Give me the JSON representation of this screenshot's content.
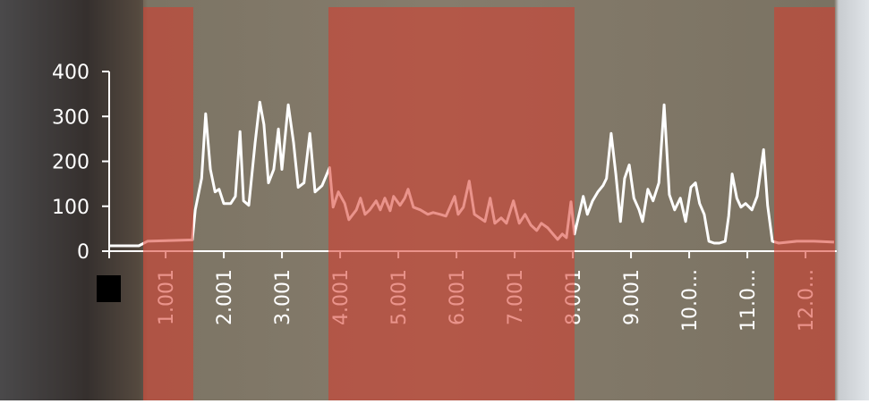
{
  "chart_data": {
    "type": "line",
    "x": [
      0.03,
      0.54,
      0.69,
      1.46,
      1.51,
      1.62,
      1.69,
      1.77,
      1.85,
      1.92,
      2.0,
      2.12,
      2.2,
      2.28,
      2.34,
      2.43,
      2.54,
      2.62,
      2.69,
      2.77,
      2.86,
      2.94,
      3.0,
      3.11,
      3.2,
      3.28,
      3.38,
      3.48,
      3.57,
      3.69,
      3.82,
      3.88,
      3.97,
      4.08,
      4.15,
      4.28,
      4.35,
      4.43,
      4.51,
      4.62,
      4.69,
      4.77,
      4.86,
      4.92,
      5.03,
      5.11,
      5.17,
      5.26,
      5.38,
      5.51,
      5.6,
      5.72,
      5.82,
      5.89,
      5.97,
      6.03,
      6.12,
      6.22,
      6.31,
      6.4,
      6.49,
      6.58,
      6.66,
      6.77,
      6.86,
      6.98,
      7.08,
      7.18,
      7.28,
      7.38,
      7.46,
      7.57,
      7.66,
      7.74,
      7.82,
      7.89,
      7.97,
      8.03,
      8.09,
      8.18,
      8.25,
      8.34,
      8.43,
      8.52,
      8.58,
      8.66,
      8.74,
      8.82,
      8.89,
      8.97,
      9.05,
      9.14,
      9.2,
      9.29,
      9.38,
      9.48,
      9.57,
      9.66,
      9.75,
      9.85,
      9.94,
      10.03,
      10.11,
      10.18,
      10.26,
      10.34,
      10.43,
      10.52,
      10.62,
      10.68,
      10.74,
      10.82,
      10.89,
      10.97,
      11.08,
      11.17,
      11.28,
      11.35,
      11.43,
      11.54,
      11.85,
      12.15,
      12.49
    ],
    "series": [
      {
        "color": "#ffffff",
        "values": [
          12,
          12,
          22,
          25,
          92,
          162,
          306,
          182,
          132,
          138,
          106,
          106,
          122,
          266,
          112,
          102,
          242,
          332,
          282,
          152,
          182,
          272,
          182,
          326,
          242,
          142,
          152,
          262,
          132,
          146,
          186,
          98,
          132,
          106,
          70,
          92,
          118,
          82,
          92,
          112,
          92,
          118,
          90,
          122,
          102,
          118,
          138,
          98,
          92,
          82,
          86,
          82,
          78,
          98,
          122,
          82,
          98,
          156,
          82,
          74,
          66,
          118,
          62,
          74,
          62,
          112,
          62,
          82,
          58,
          46,
          62,
          52,
          38,
          26,
          38,
          30,
          110,
          38,
          72,
          122,
          82,
          112,
          132,
          146,
          162,
          262,
          172,
          66,
          162,
          192,
          118,
          92,
          66,
          138,
          112,
          152,
          326,
          126,
          92,
          118,
          66,
          142,
          152,
          106,
          82,
          22,
          18,
          18,
          22,
          78,
          172,
          118,
          98,
          106,
          92,
          122,
          226,
          102,
          22,
          18,
          22,
          22,
          20
        ]
      }
    ],
    "xlim": [
      0,
      12.5
    ],
    "ylim": [
      0,
      400
    ],
    "xticks": [
      1.001,
      2.001,
      3.001,
      4.001,
      5.001,
      6.001,
      7.001,
      8.001,
      9.001,
      {
        "value": 10.001,
        "label": "10.0..."
      },
      {
        "value": 11.001,
        "label": "11.0..."
      },
      {
        "value": 12.001,
        "label": "12.0..."
      }
    ],
    "yticks": [
      0,
      100,
      200,
      300,
      400
    ]
  }
}
